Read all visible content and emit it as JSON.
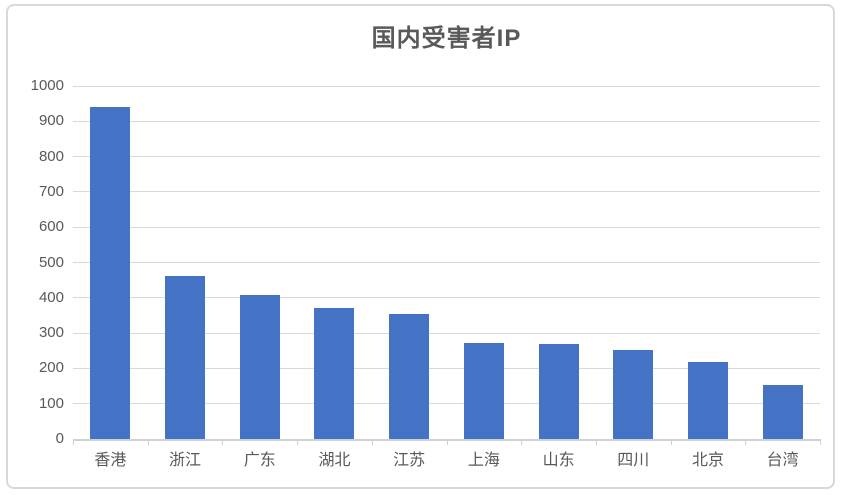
{
  "frame": {
    "background": "#ffffff",
    "border_color": "#d8d8d8"
  },
  "chart_data": {
    "type": "bar",
    "title": "国内受害者IP",
    "categories": [
      "香港",
      "浙江",
      "广东",
      "湖北",
      "江苏",
      "上海",
      "山东",
      "四川",
      "北京",
      "台湾"
    ],
    "values": [
      940,
      462,
      408,
      371,
      354,
      273,
      270,
      252,
      218,
      152
    ],
    "xlabel": "",
    "ylabel": "",
    "ylim": [
      0,
      1000
    ],
    "ytick_step": 100,
    "ytick_labels": [
      "0",
      "100",
      "200",
      "300",
      "400",
      "500",
      "600",
      "700",
      "800",
      "900",
      "1000"
    ],
    "grid": true,
    "legend": "none",
    "colors": {
      "bar": "#4472c4",
      "gridline": "#d9d9d9",
      "axis_line": "#ced2d7",
      "text": "#595959"
    }
  }
}
